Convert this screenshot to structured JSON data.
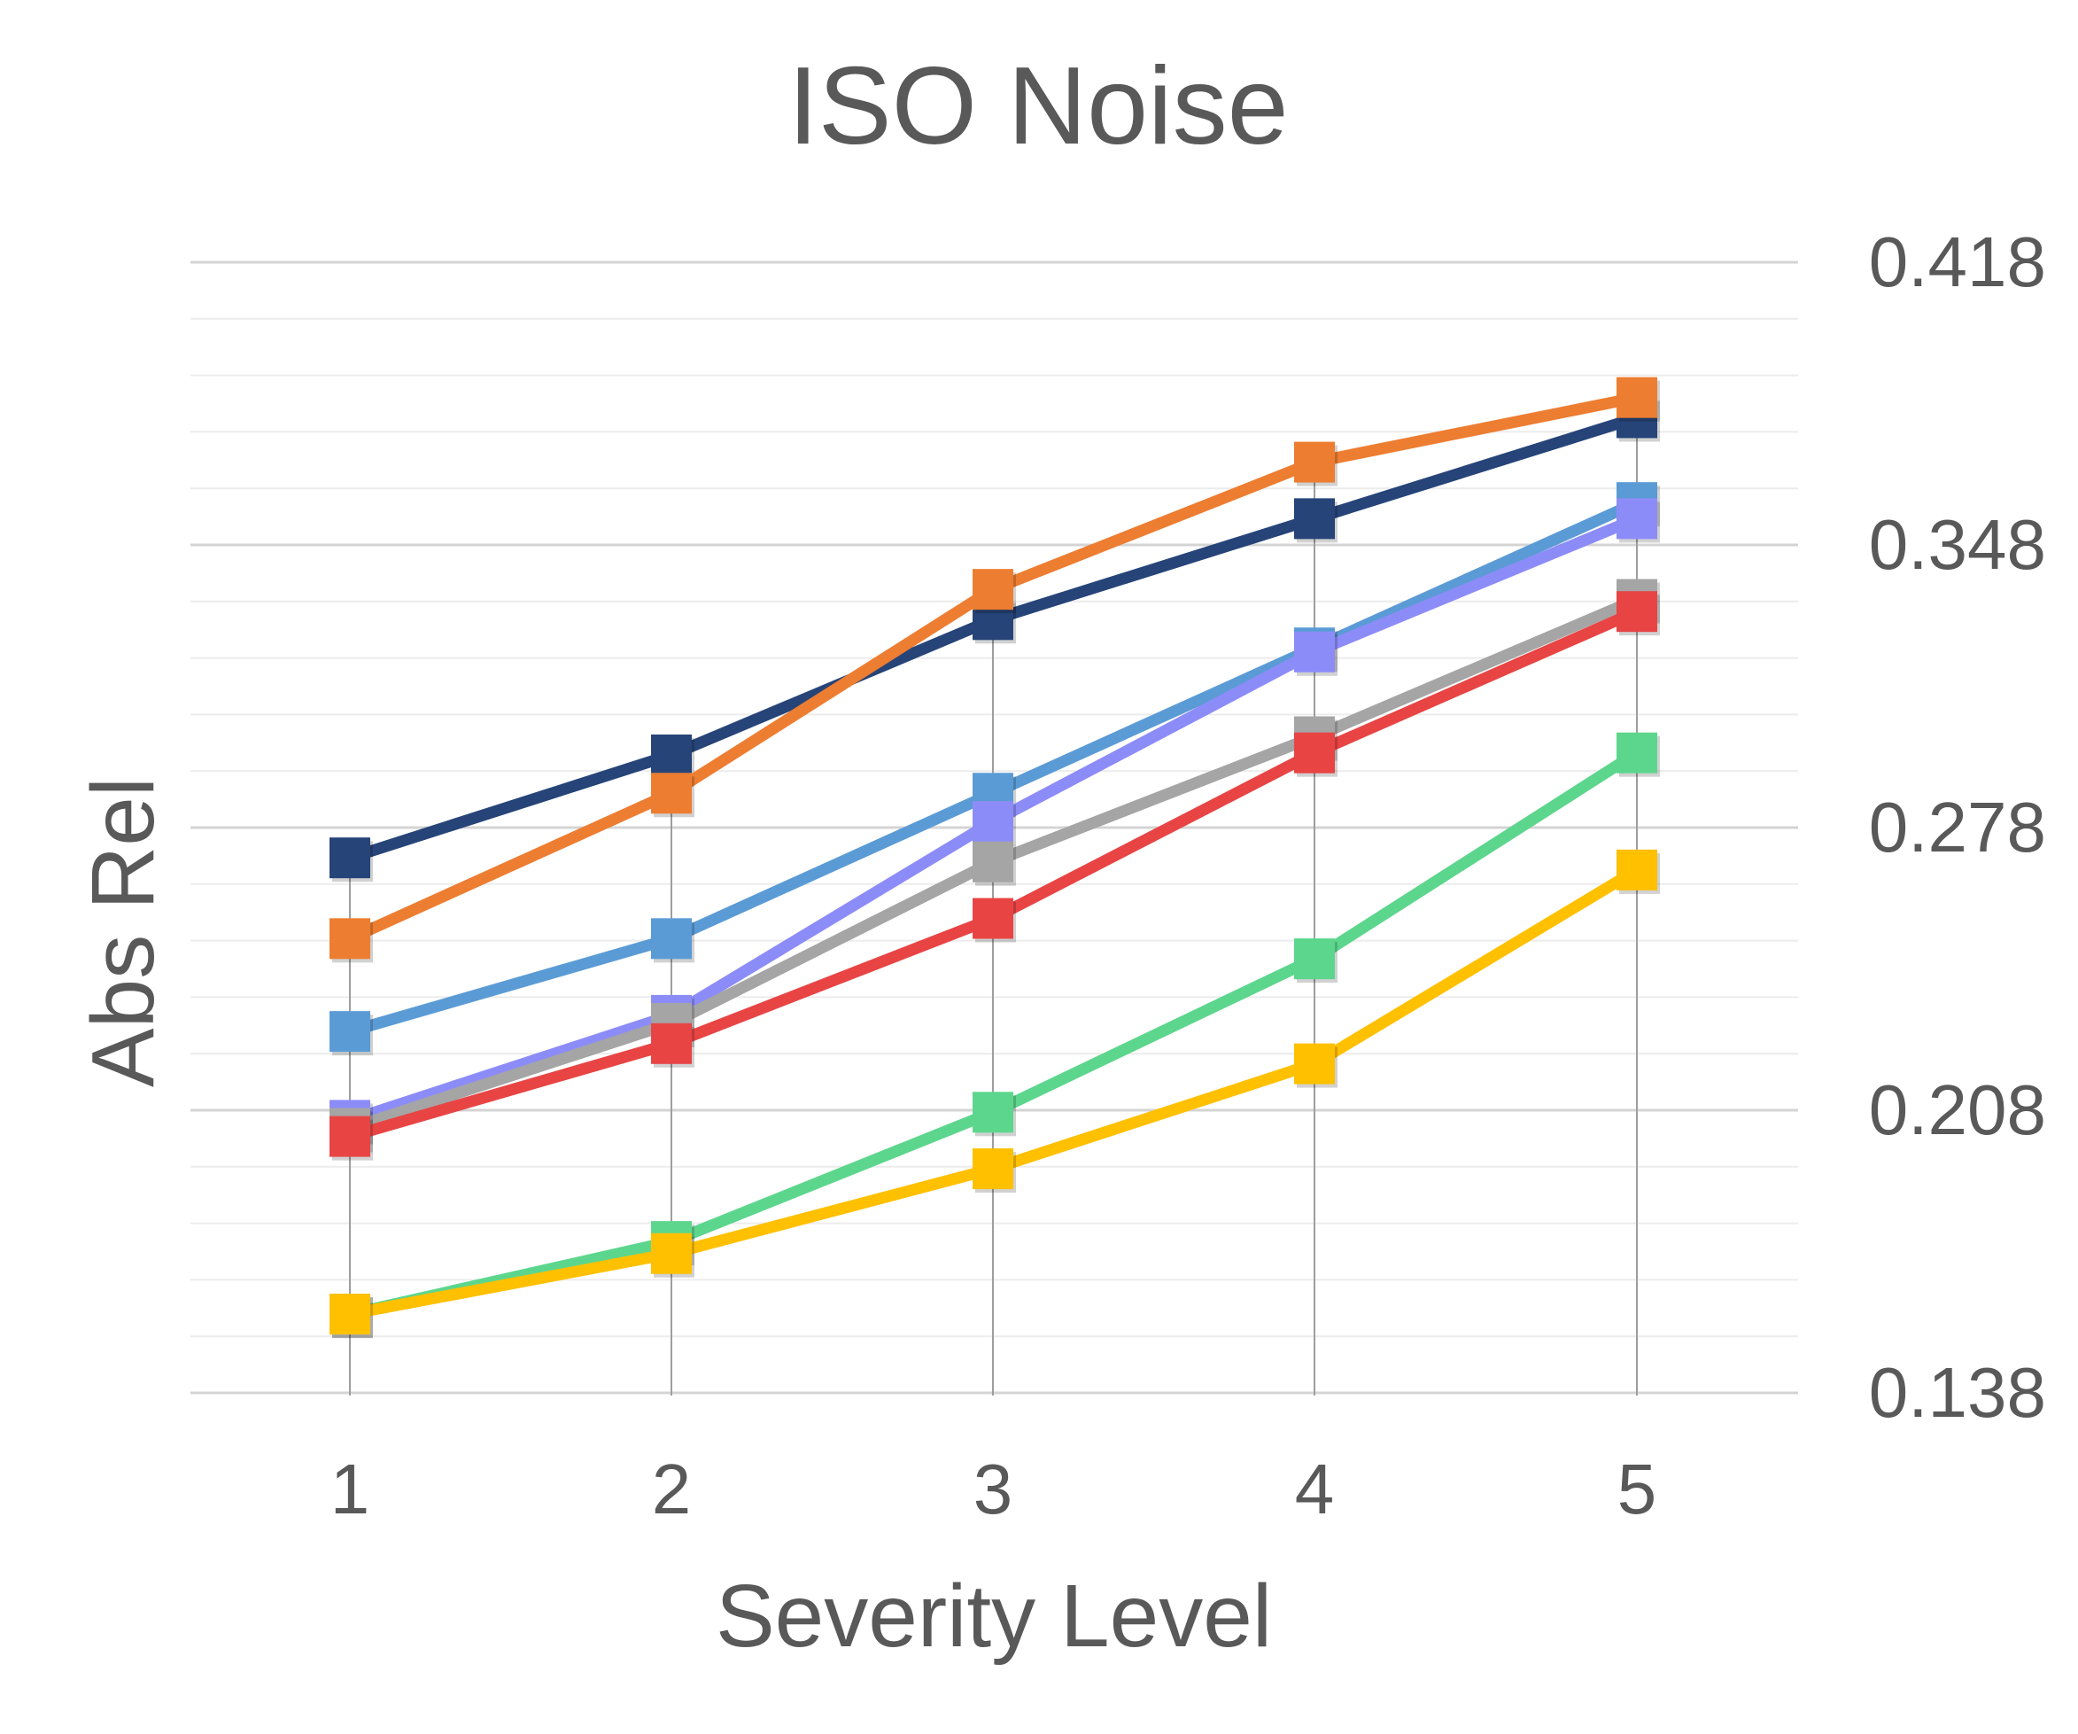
{
  "chart_data": {
    "type": "line",
    "title": "ISO Noise",
    "xlabel": "Severity Level",
    "ylabel": "Abs Rel",
    "categories": [
      "1",
      "2",
      "3",
      "4",
      "5"
    ],
    "y_axis_position": "right",
    "y_ticks": [
      "0.418",
      "0.348",
      "0.278",
      "0.208",
      "0.138"
    ],
    "ylim": [
      0.138,
      0.418
    ],
    "y_minor_step": 0.014,
    "grid": true,
    "vertical_drop_lines": true,
    "marker": "square",
    "legend": "none",
    "series": [
      {
        "color": "#264478",
        "values": [
          0.2705,
          0.296,
          0.3295,
          0.3545,
          0.3795
        ]
      },
      {
        "color": "#ED7D31",
        "values": [
          0.2505,
          0.2865,
          0.337,
          0.3685,
          0.3845
        ]
      },
      {
        "color": "#5B9BD5",
        "values": [
          0.2275,
          0.2505,
          0.2865,
          0.3225,
          0.3585
        ]
      },
      {
        "color": "#8C8CF8",
        "values": [
          0.2055,
          0.2315,
          0.2795,
          0.3215,
          0.3545
        ]
      },
      {
        "color": "#A5A5A5",
        "values": [
          0.2035,
          0.2295,
          0.2695,
          0.3005,
          0.3345
        ]
      },
      {
        "color": "#E84444",
        "values": [
          0.2015,
          0.2245,
          0.2555,
          0.2965,
          0.3315
        ]
      },
      {
        "color": "#5DD68D",
        "values": [
          0.1575,
          0.1755,
          0.2075,
          0.2455,
          0.2965
        ]
      },
      {
        "color": "#FFC000",
        "values": [
          0.1575,
          0.1725,
          0.1935,
          0.2195,
          0.2675
        ]
      }
    ]
  }
}
